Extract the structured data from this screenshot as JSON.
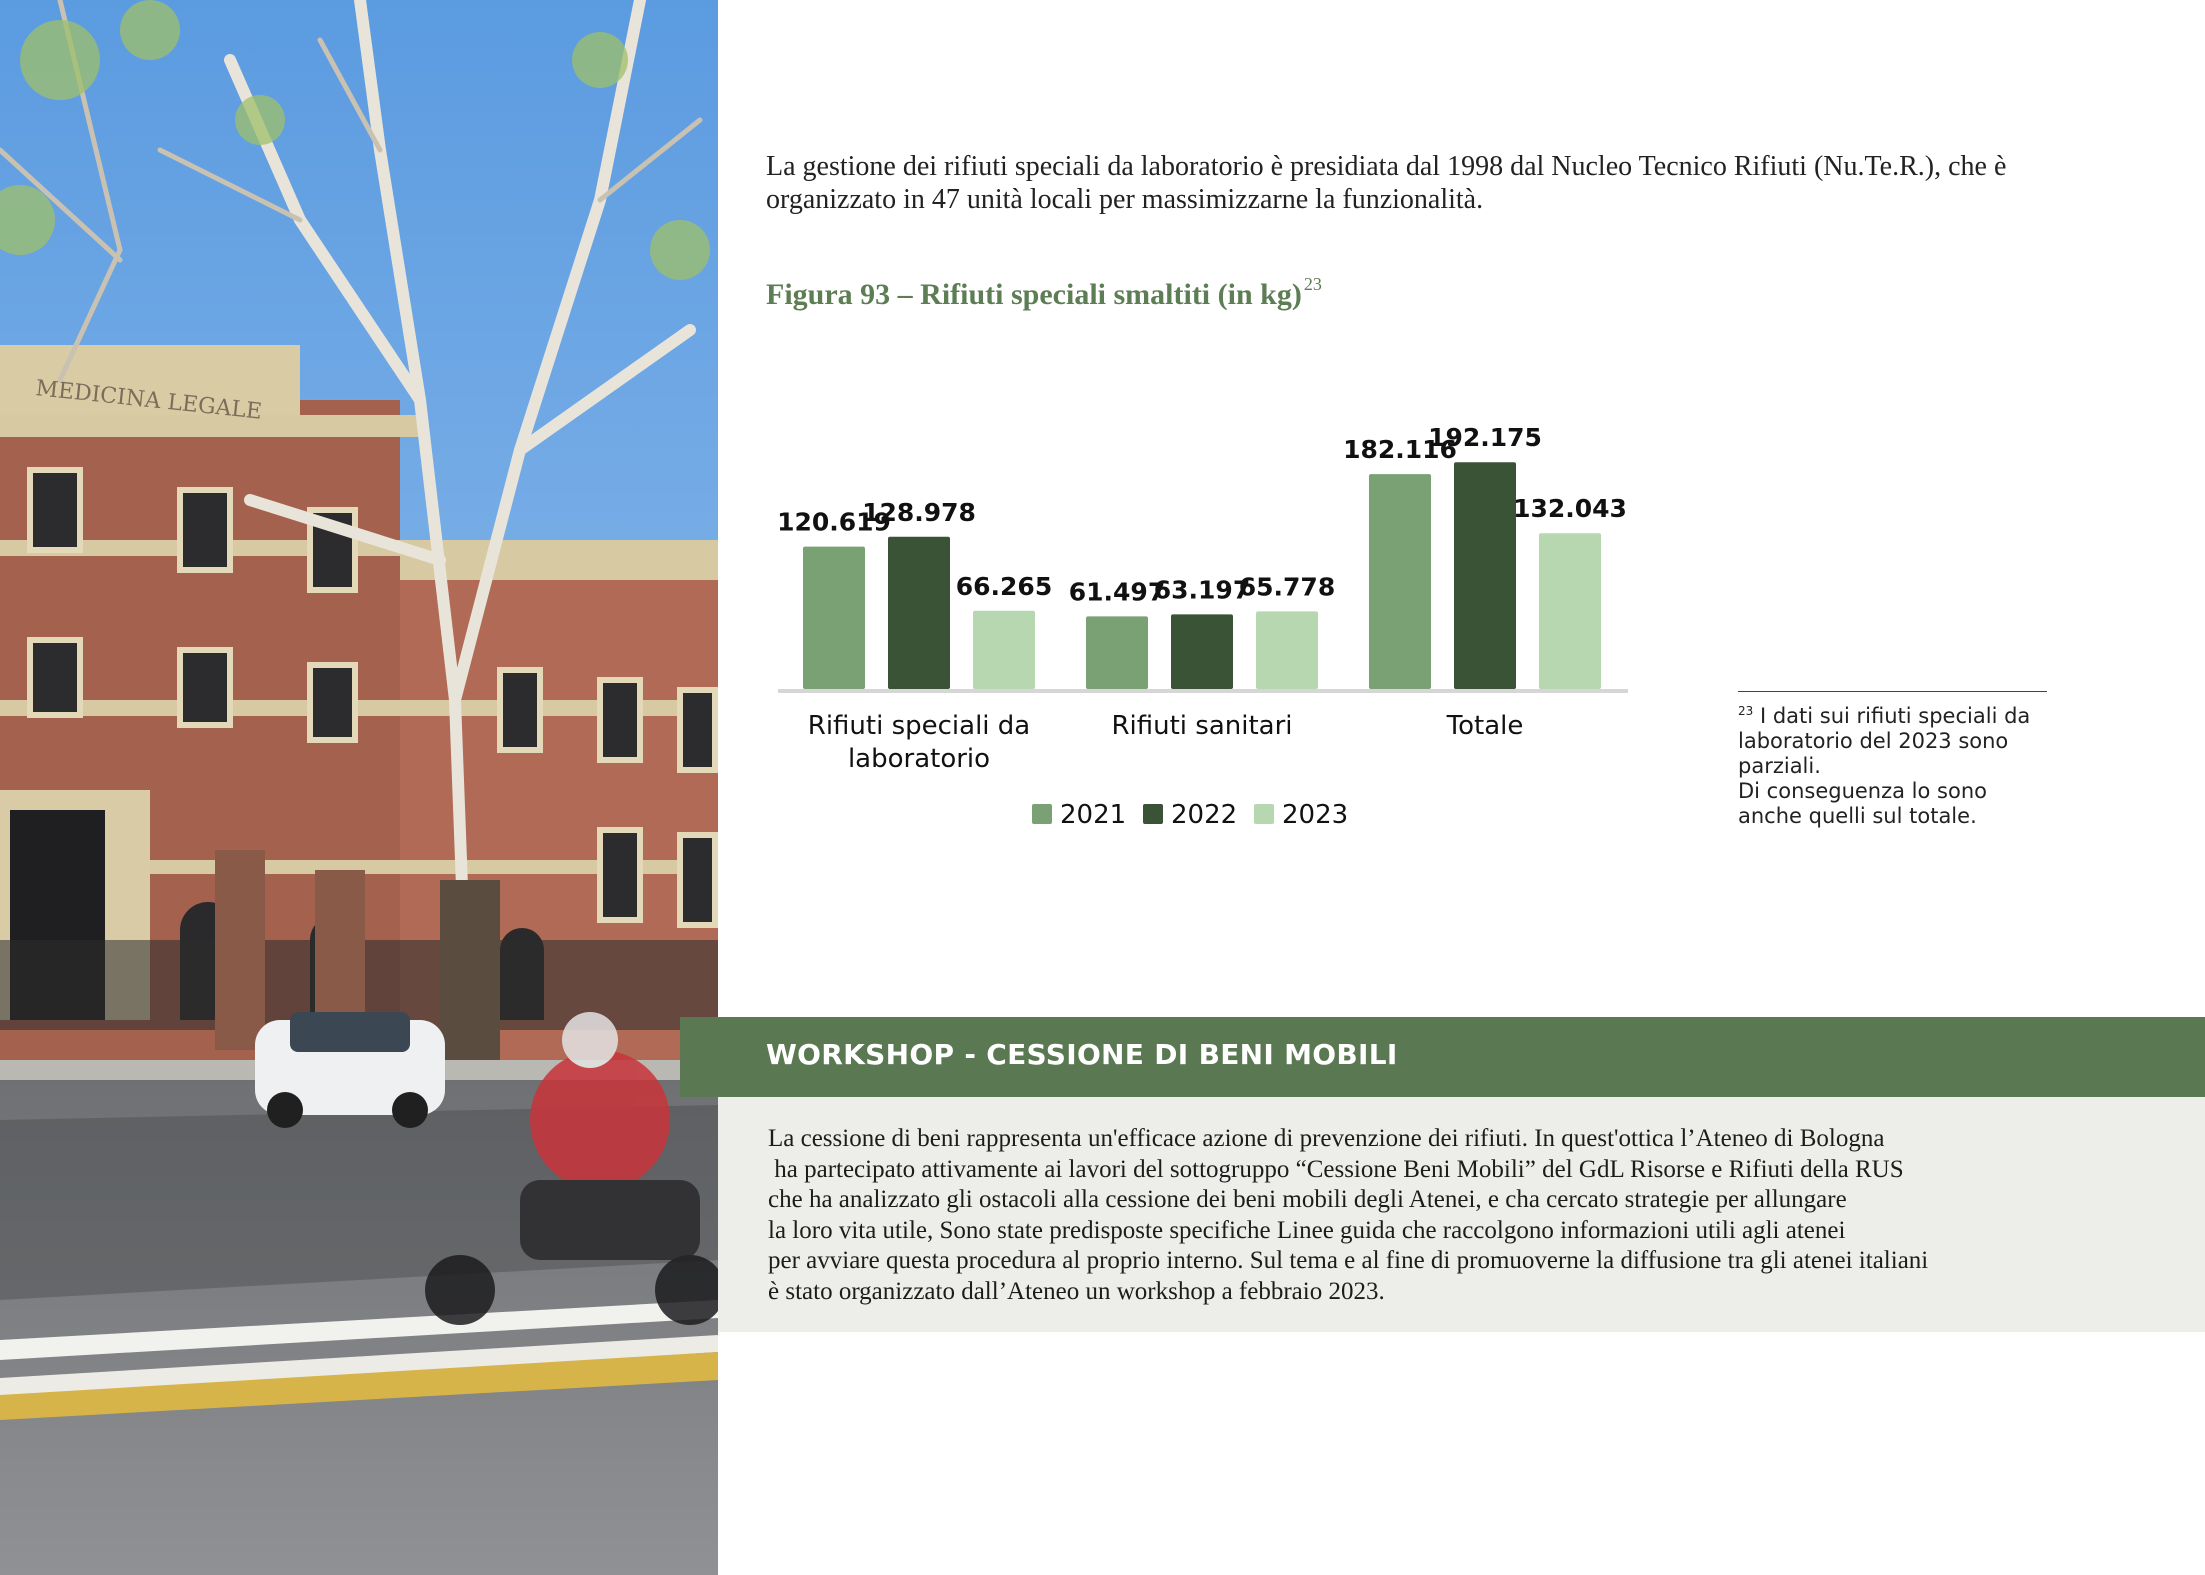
{
  "intro": {
    "line1": "La gestione dei rifiuti speciali da laboratorio è presidiata dal 1998 dal Nucleo Tecnico Rifiuti (Nu.Te.R.), che è",
    "line2": "organizzato in 47 unità locali per massimizzarne la funzionalità."
  },
  "figure": {
    "title": "Figura 93 – Rifiuti speciali smaltiti  (in kg)",
    "footnote_ref": "23"
  },
  "photo": {
    "sign_text": "MEDICINA LEGALE"
  },
  "chart_data": {
    "type": "bar",
    "title": "Figura 93 – Rifiuti speciali smaltiti  (in kg)",
    "categories": [
      "Rifiuti speciali da laboratorio",
      "Rifiuti sanitari",
      "Totale"
    ],
    "category_label_lines": [
      [
        "Rifiuti speciali da",
        "laboratorio"
      ],
      [
        "Rifiuti sanitari"
      ],
      [
        "Totale"
      ]
    ],
    "series": [
      {
        "name": "2021",
        "color": "#7aa174",
        "values": [
          120619,
          61497,
          182116
        ],
        "labels": [
          "120.619",
          "61.497",
          "182.116"
        ]
      },
      {
        "name": "2022",
        "color": "#3a5236",
        "values": [
          128978,
          63197,
          192175
        ],
        "labels": [
          "128.978",
          "63.197",
          "192.175"
        ]
      },
      {
        "name": "2023",
        "color": "#b7d7b1",
        "values": [
          66265,
          65778,
          132043
        ],
        "labels": [
          "66.265",
          "65.778",
          "132.043"
        ]
      }
    ],
    "ylim": [
      0,
      200000
    ],
    "grid": false,
    "legend_position": "bottom"
  },
  "footnote": {
    "number": "23",
    "line1": "I dati sui rifiuti speciali da",
    "line2": "laboratorio del 2023 sono",
    "line3": "parziali.",
    "line4": "Di conseguenza lo sono",
    "line5": "anche quelli sul totale."
  },
  "workshop": {
    "title": "WORKSHOP - CESSIONE DI BENI MOBILI",
    "lines": [
      "La cessione di beni rappresenta un'efficace azione di prevenzione dei rifiuti. In quest'ottica l’Ateneo di Bologna",
      " ha partecipato attivamente ai lavori del sottogruppo “Cessione Beni Mobili” del GdL Risorse e Rifiuti della RUS",
      "che ha analizzato gli ostacoli alla cessione dei beni mobili degli Atenei, e cha cercato strategie per allungare",
      "la loro vita utile, Sono state predisposte specifiche Linee guida che raccolgono informazioni utili agli atenei",
      "per avviare questa procedura al proprio interno. Sul tema e al fine di promuoverne la diffusione tra gli atenei italiani",
      "è stato organizzato dall’Ateneo un workshop a febbraio 2023."
    ]
  },
  "colors": {
    "accent_green": "#5a7851",
    "title_green": "#5d7d54",
    "panel_grey": "#edeeea"
  }
}
